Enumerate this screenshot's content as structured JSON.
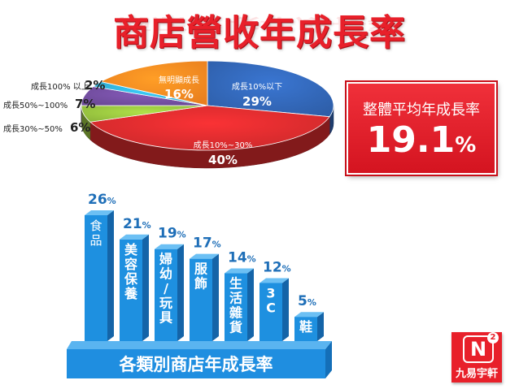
{
  "title": "商店營收年成長率",
  "average": {
    "label": "整體平均年成長率",
    "value": "19.1",
    "unit": "%"
  },
  "logo": {
    "mark": "N",
    "superscript": "2",
    "text": "九易宇軒"
  },
  "chart_data": [
    {
      "type": "pie",
      "slices": [
        {
          "label": "成長10%以下",
          "value": 29,
          "display": "29%",
          "color": "#2e5ea8"
        },
        {
          "label": "成長10%~30%",
          "value": 40,
          "display": "40%",
          "color": "#c8282a"
        },
        {
          "label": "成長30%~50%",
          "value": 6,
          "display": "6%",
          "color": "#8cb43a"
        },
        {
          "label": "成長50%~100%",
          "value": 7,
          "display": "7%",
          "color": "#6a4894"
        },
        {
          "label": "成長100% 以上",
          "value": 2,
          "display": "2%",
          "color": "#2ea4c8"
        },
        {
          "label": "無明顯成長",
          "value": 16,
          "display": "16%",
          "color": "#e87e1e"
        }
      ]
    },
    {
      "type": "bar",
      "title": "各類別商店年成長率",
      "unit": "%",
      "categories": [
        "食品",
        "美容保養",
        "婦幼/玩具",
        "服飾",
        "生活雜貨",
        "3C",
        "鞋"
      ],
      "values": [
        26,
        21,
        19,
        17,
        14,
        12,
        5
      ],
      "color": "#1e90e0"
    }
  ]
}
